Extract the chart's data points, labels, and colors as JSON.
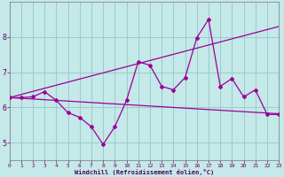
{
  "xlabel": "Windchill (Refroidissement éolien,°C)",
  "bg_color": "#c5e8e8",
  "grid_color": "#99cccc",
  "line_color": "#990099",
  "xlim": [
    0,
    23
  ],
  "ylim": [
    4.5,
    9.0
  ],
  "yticks": [
    5,
    6,
    7,
    8
  ],
  "xticks": [
    0,
    1,
    2,
    3,
    4,
    5,
    6,
    7,
    8,
    9,
    10,
    11,
    12,
    13,
    14,
    15,
    16,
    17,
    18,
    19,
    20,
    21,
    22,
    23
  ],
  "line1_x": [
    0,
    1,
    2,
    3,
    4,
    5,
    6,
    7,
    8,
    9,
    10,
    11,
    12,
    13,
    14,
    15,
    16,
    17,
    18,
    19,
    20,
    21,
    22,
    23
  ],
  "line1_y": [
    6.28,
    6.28,
    6.3,
    6.45,
    6.2,
    5.85,
    5.72,
    5.45,
    4.95,
    5.45,
    6.2,
    7.3,
    7.2,
    6.6,
    6.5,
    6.85,
    7.98,
    8.5,
    6.6,
    6.82,
    6.3,
    6.5,
    5.8,
    5.8
  ],
  "line2_x": [
    0,
    23
  ],
  "line2_y": [
    6.28,
    8.3
  ],
  "line3_x": [
    0,
    23
  ],
  "line3_y": [
    6.28,
    5.82
  ]
}
